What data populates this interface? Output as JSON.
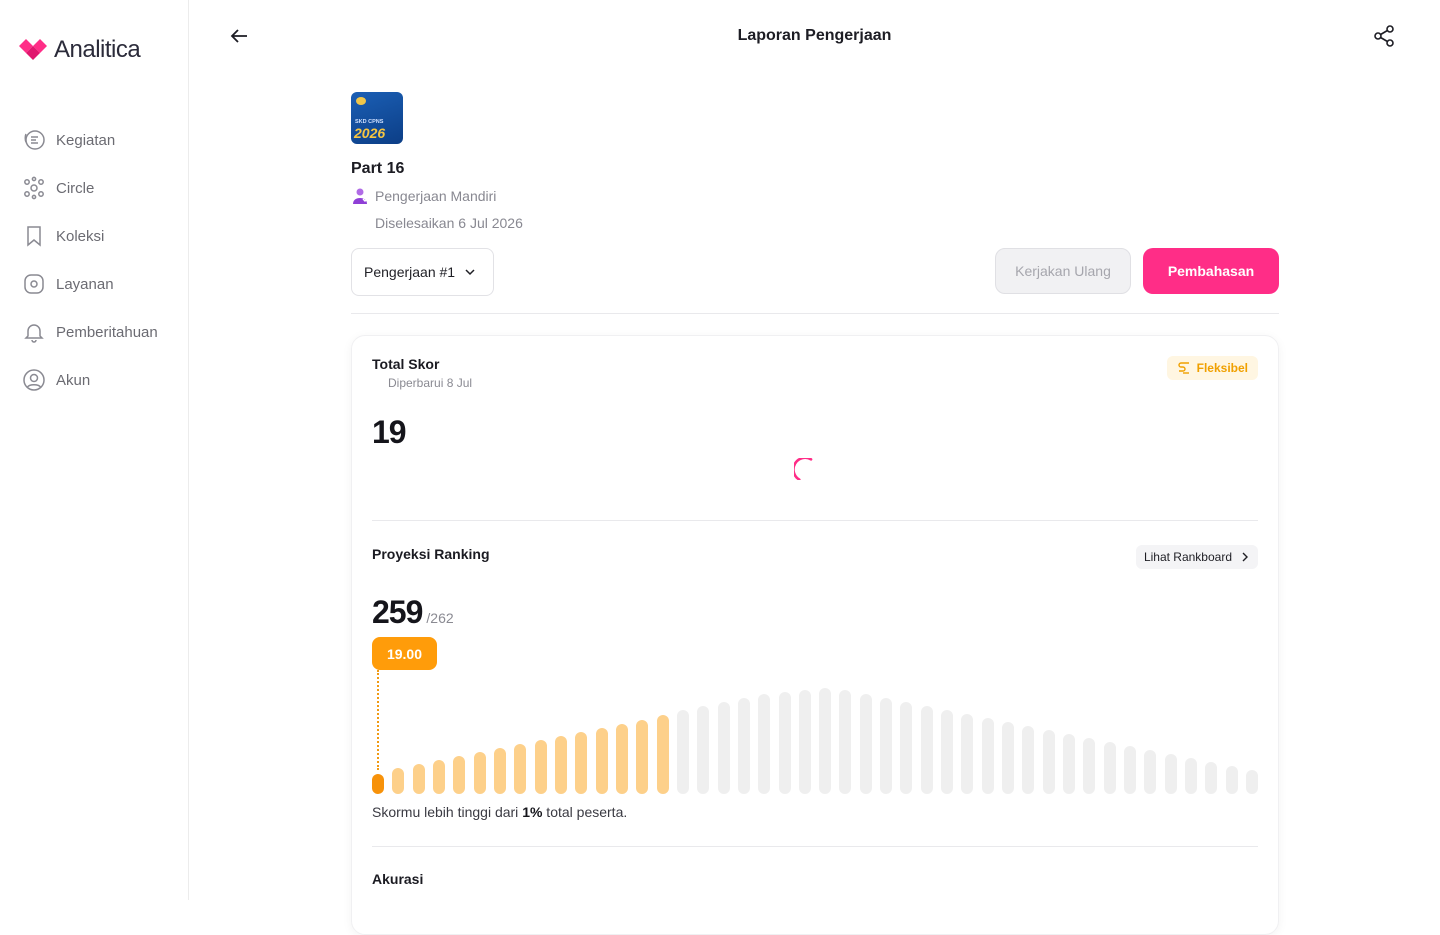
{
  "app": {
    "logo_text": "Analitica",
    "brand_color": "#ff2d87"
  },
  "sidebar": {
    "items": [
      {
        "label": "Kegiatan",
        "icon": "activity-icon"
      },
      {
        "label": "Circle",
        "icon": "circle-group-icon"
      },
      {
        "label": "Koleksi",
        "icon": "bookmark-icon"
      },
      {
        "label": "Layanan",
        "icon": "compass-icon"
      },
      {
        "label": "Pemberitahuan",
        "icon": "bell-icon"
      },
      {
        "label": "Akun",
        "icon": "user-circle-icon"
      }
    ]
  },
  "header": {
    "title": "Laporan Pengerjaan"
  },
  "exam": {
    "thumb_small": "SKD CPNS",
    "thumb_year": "2026",
    "title": "Part 16",
    "mode": "Pengerjaan Mandiri",
    "completed": "Diselesaikan 6 Jul 2026"
  },
  "actions": {
    "attempt_select": "Pengerjaan #1",
    "retry_label": "Kerjakan Ulang",
    "discussion_label": "Pembahasan"
  },
  "score": {
    "title": "Total Skor",
    "updated": "Diperbarui 8 Jul",
    "badge": "Fleksibel",
    "value": "19"
  },
  "ranking": {
    "title": "Proyeksi Ranking",
    "link_label": "Lihat Rankboard",
    "rank": "259",
    "total": "/262",
    "score_pill": "19.00",
    "summary_before": "Skormu lebih tinggi dari ",
    "summary_pct": "1%",
    "summary_after": " total peserta.",
    "distribution": [
      20,
      26,
      30,
      34,
      38,
      42,
      46,
      50,
      54,
      58,
      62,
      66,
      70,
      74,
      79,
      84,
      88,
      92,
      96,
      100,
      102,
      104,
      106,
      104,
      100,
      96,
      92,
      88,
      84,
      80,
      76,
      72,
      68,
      64,
      60,
      56,
      52,
      48,
      44,
      40,
      36,
      32,
      28,
      24
    ]
  },
  "accuracy": {
    "title": "Akurasi"
  }
}
